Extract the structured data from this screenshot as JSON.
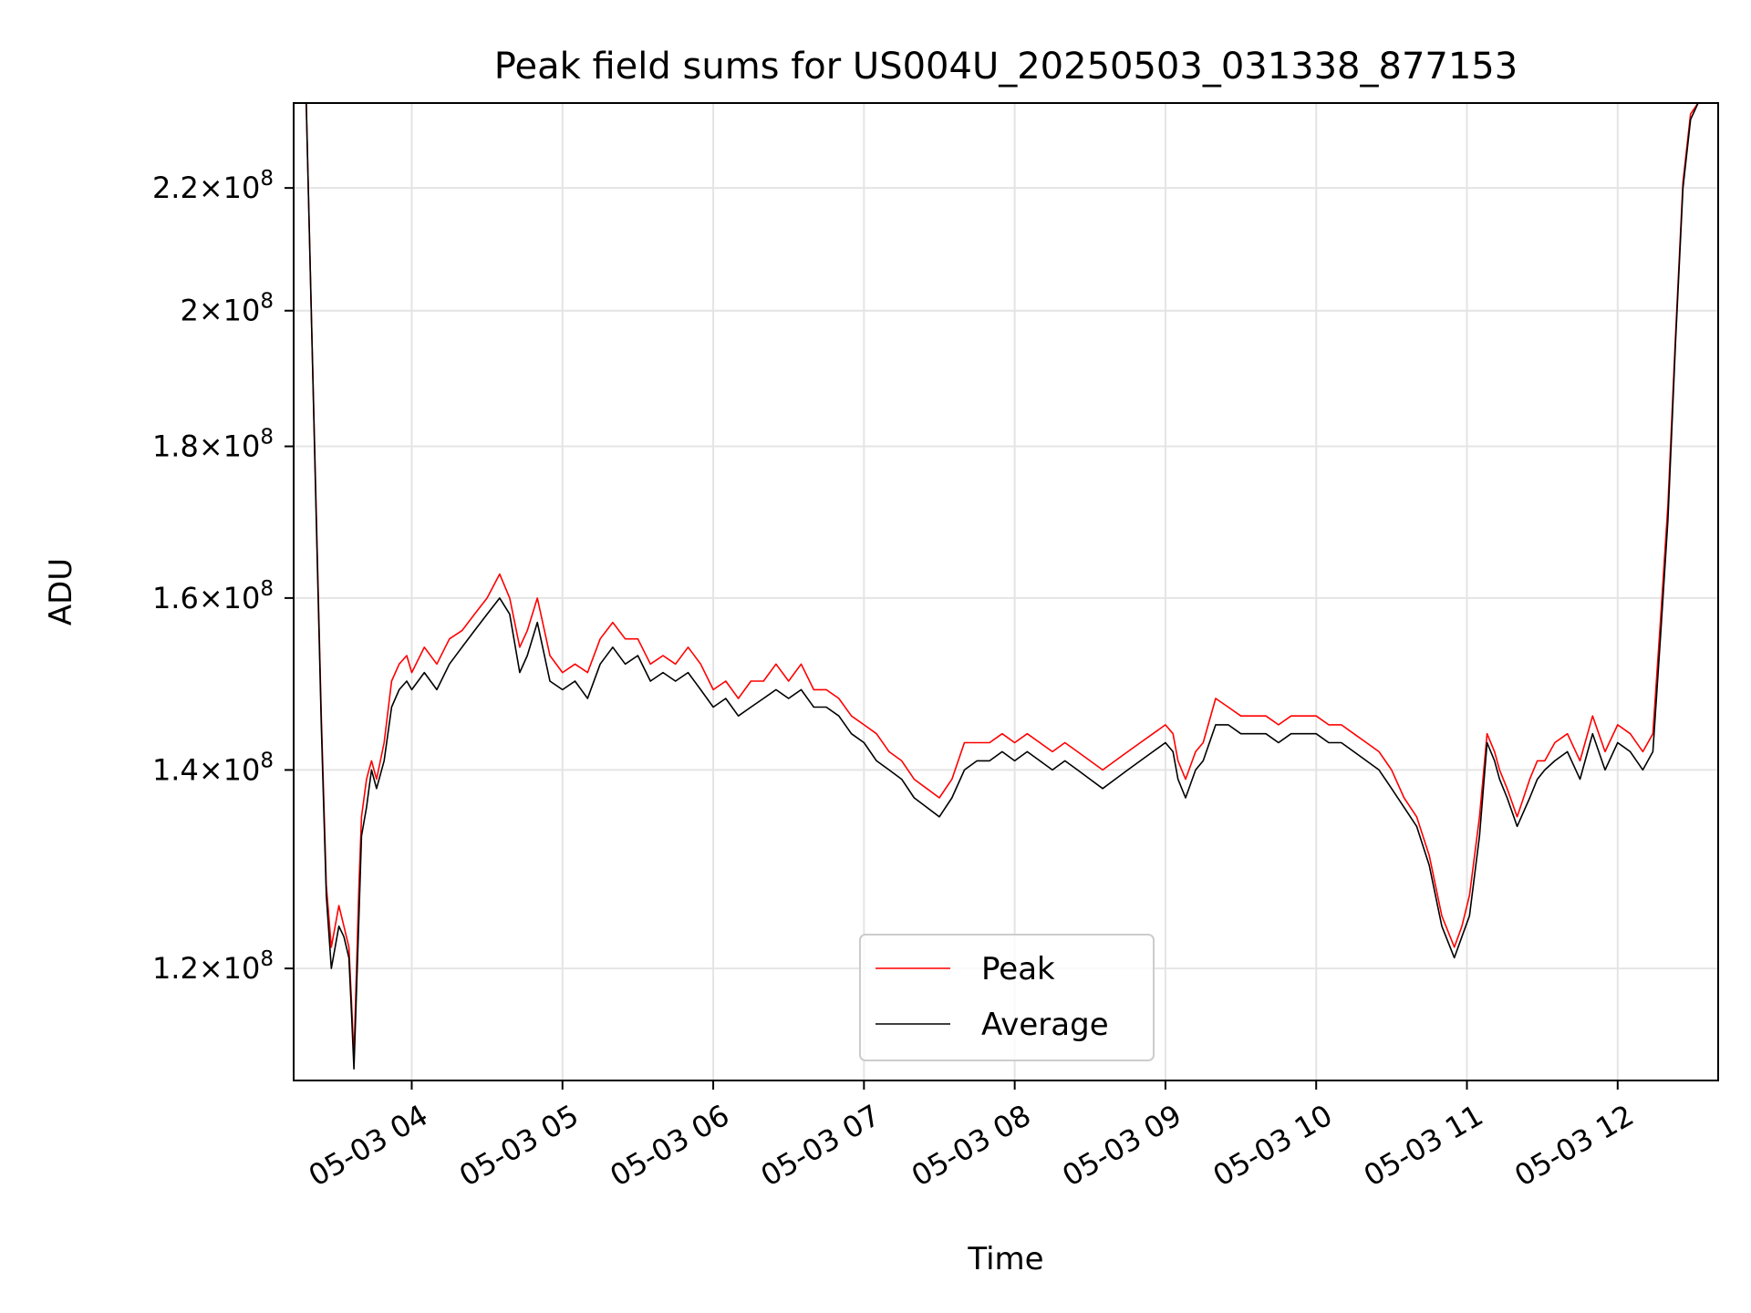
{
  "chart_data": {
    "type": "line",
    "title": "Peak field sums for US004U_20250503_031338_877153",
    "xlabel": "Time",
    "ylabel": "ADU",
    "y_scale": "log",
    "ylim": [
      110000000,
      235000000
    ],
    "xlim": [
      "2025-05-03 03:13",
      "2025-05-03 12:40"
    ],
    "grid": true,
    "legend_position": "lower-center",
    "x_tick_labels": [
      "05-03 04",
      "05-03 05",
      "05-03 06",
      "05-03 07",
      "05-03 08",
      "05-03 09",
      "05-03 10",
      "05-03 11",
      "05-03 12"
    ],
    "x_ticks": [
      "2025-05-03 04:00",
      "2025-05-03 05:00",
      "2025-05-03 06:00",
      "2025-05-03 07:00",
      "2025-05-03 08:00",
      "2025-05-03 09:00",
      "2025-05-03 10:00",
      "2025-05-03 11:00",
      "2025-05-03 12:00"
    ],
    "y_ticks": [
      {
        "value": 120000000,
        "mantissa": "1.2",
        "exponent": "8"
      },
      {
        "value": 140000000,
        "mantissa": "1.4",
        "exponent": "8"
      },
      {
        "value": 160000000,
        "mantissa": "1.6",
        "exponent": "8"
      },
      {
        "value": 180000000,
        "mantissa": "1.8",
        "exponent": "8"
      },
      {
        "value": 200000000,
        "mantissa": "2",
        "exponent": "8"
      },
      {
        "value": 220000000,
        "mantissa": "2.2",
        "exponent": "8"
      }
    ],
    "y_tick_times": "×10",
    "series": [
      {
        "name": "Peak",
        "color": "#ff0000",
        "line_width": 1
      },
      {
        "name": "Average",
        "color": "#000000",
        "line_width": 1
      }
    ],
    "x": [
      "2025-05-03 03:13",
      "2025-05-03 03:18",
      "2025-05-03 03:20",
      "2025-05-03 03:22",
      "2025-05-03 03:24",
      "2025-05-03 03:26",
      "2025-05-03 03:28",
      "2025-05-03 03:31",
      "2025-05-03 03:33",
      "2025-05-03 03:35",
      "2025-05-03 03:36",
      "2025-05-03 03:37",
      "2025-05-03 03:39",
      "2025-05-03 03:40",
      "2025-05-03 03:42",
      "2025-05-03 03:43",
      "2025-05-03 03:44",
      "2025-05-03 03:46",
      "2025-05-03 03:49",
      "2025-05-03 03:52",
      "2025-05-03 03:55",
      "2025-05-03 03:58",
      "2025-05-03 04:00",
      "2025-05-03 04:05",
      "2025-05-03 04:10",
      "2025-05-03 04:15",
      "2025-05-03 04:20",
      "2025-05-03 04:25",
      "2025-05-03 04:30",
      "2025-05-03 04:35",
      "2025-05-03 04:39",
      "2025-05-03 04:43",
      "2025-05-03 04:46",
      "2025-05-03 04:50",
      "2025-05-03 04:55",
      "2025-05-03 05:00",
      "2025-05-03 05:05",
      "2025-05-03 05:10",
      "2025-05-03 05:15",
      "2025-05-03 05:20",
      "2025-05-03 05:25",
      "2025-05-03 05:30",
      "2025-05-03 05:35",
      "2025-05-03 05:40",
      "2025-05-03 05:45",
      "2025-05-03 05:50",
      "2025-05-03 05:55",
      "2025-05-03 06:00",
      "2025-05-03 06:05",
      "2025-05-03 06:10",
      "2025-05-03 06:15",
      "2025-05-03 06:20",
      "2025-05-03 06:25",
      "2025-05-03 06:30",
      "2025-05-03 06:35",
      "2025-05-03 06:40",
      "2025-05-03 06:45",
      "2025-05-03 06:50",
      "2025-05-03 06:55",
      "2025-05-03 07:00",
      "2025-05-03 07:05",
      "2025-05-03 07:10",
      "2025-05-03 07:15",
      "2025-05-03 07:20",
      "2025-05-03 07:25",
      "2025-05-03 07:30",
      "2025-05-03 07:35",
      "2025-05-03 07:40",
      "2025-05-03 07:45",
      "2025-05-03 07:50",
      "2025-05-03 07:55",
      "2025-05-03 08:00",
      "2025-05-03 08:05",
      "2025-05-03 08:10",
      "2025-05-03 08:15",
      "2025-05-03 08:20",
      "2025-05-03 08:25",
      "2025-05-03 08:30",
      "2025-05-03 08:35",
      "2025-05-03 08:40",
      "2025-05-03 08:45",
      "2025-05-03 08:50",
      "2025-05-03 08:55",
      "2025-05-03 09:00",
      "2025-05-03 09:03",
      "2025-05-03 09:05",
      "2025-05-03 09:08",
      "2025-05-03 09:12",
      "2025-05-03 09:15",
      "2025-05-03 09:20",
      "2025-05-03 09:25",
      "2025-05-03 09:30",
      "2025-05-03 09:35",
      "2025-05-03 09:40",
      "2025-05-03 09:45",
      "2025-05-03 09:50",
      "2025-05-03 09:55",
      "2025-05-03 10:00",
      "2025-05-03 10:05",
      "2025-05-03 10:10",
      "2025-05-03 10:15",
      "2025-05-03 10:20",
      "2025-05-03 10:25",
      "2025-05-03 10:30",
      "2025-05-03 10:35",
      "2025-05-03 10:40",
      "2025-05-03 10:45",
      "2025-05-03 10:50",
      "2025-05-03 10:55",
      "2025-05-03 10:58",
      "2025-05-03 11:01",
      "2025-05-03 11:05",
      "2025-05-03 11:08",
      "2025-05-03 11:11",
      "2025-05-03 11:13",
      "2025-05-03 11:16",
      "2025-05-03 11:20",
      "2025-05-03 11:25",
      "2025-05-03 11:28",
      "2025-05-03 11:31",
      "2025-05-03 11:35",
      "2025-05-03 11:40",
      "2025-05-03 11:45",
      "2025-05-03 11:50",
      "2025-05-03 11:55",
      "2025-05-03 12:00",
      "2025-05-03 12:05",
      "2025-05-03 12:10",
      "2025-05-03 12:14",
      "2025-05-03 12:17",
      "2025-05-03 12:20",
      "2025-05-03 12:23",
      "2025-05-03 12:26",
      "2025-05-03 12:29",
      "2025-05-03 12:32",
      "2025-05-03 12:35",
      "2025-05-03 12:38"
    ],
    "average": [
      235000000,
      235000000,
      200000000,
      170000000,
      145000000,
      127000000,
      120000000,
      124000000,
      123000000,
      121000000,
      116000000,
      111000000,
      125000000,
      133000000,
      136000000,
      138000000,
      140000000,
      138000000,
      141000000,
      147000000,
      149000000,
      150000000,
      149000000,
      151000000,
      149000000,
      152000000,
      154000000,
      156000000,
      158000000,
      160000000,
      158000000,
      151000000,
      153000000,
      157000000,
      150000000,
      149000000,
      150000000,
      148000000,
      152000000,
      154000000,
      152000000,
      153000000,
      150000000,
      151000000,
      150000000,
      151000000,
      149000000,
      147000000,
      148000000,
      146000000,
      147000000,
      148000000,
      149000000,
      148000000,
      149000000,
      147000000,
      147000000,
      146000000,
      144000000,
      143000000,
      141000000,
      140000000,
      139000000,
      137000000,
      136000000,
      135000000,
      137000000,
      140000000,
      141000000,
      141000000,
      142000000,
      141000000,
      142000000,
      141000000,
      140000000,
      141000000,
      140000000,
      139000000,
      138000000,
      139000000,
      140000000,
      141000000,
      142000000,
      143000000,
      142000000,
      139000000,
      137000000,
      140000000,
      141000000,
      145000000,
      145000000,
      144000000,
      144000000,
      144000000,
      143000000,
      144000000,
      144000000,
      144000000,
      143000000,
      143000000,
      142000000,
      141000000,
      140000000,
      138000000,
      136000000,
      134000000,
      130000000,
      124000000,
      121000000,
      123000000,
      125000000,
      133000000,
      143000000,
      141000000,
      139000000,
      137000000,
      134000000,
      137000000,
      139000000,
      140000000,
      141000000,
      142000000,
      139000000,
      144000000,
      140000000,
      143000000,
      142000000,
      140000000,
      142000000,
      155000000,
      170000000,
      195000000,
      220000000,
      232000000,
      235000000
    ],
    "peak": [
      235000000,
      235000000,
      200000000,
      171000000,
      146000000,
      128000000,
      122000000,
      126000000,
      124000000,
      122000000,
      117000000,
      112000000,
      128000000,
      135000000,
      139000000,
      140000000,
      141000000,
      139000000,
      143000000,
      150000000,
      152000000,
      153000000,
      151000000,
      154000000,
      152000000,
      155000000,
      156000000,
      158000000,
      160000000,
      163000000,
      160000000,
      154000000,
      156000000,
      160000000,
      153000000,
      151000000,
      152000000,
      151000000,
      155000000,
      157000000,
      155000000,
      155000000,
      152000000,
      153000000,
      152000000,
      154000000,
      152000000,
      149000000,
      150000000,
      148000000,
      150000000,
      150000000,
      152000000,
      150000000,
      152000000,
      149000000,
      149000000,
      148000000,
      146000000,
      145000000,
      144000000,
      142000000,
      141000000,
      139000000,
      138000000,
      137000000,
      139000000,
      143000000,
      143000000,
      143000000,
      144000000,
      143000000,
      144000000,
      143000000,
      142000000,
      143000000,
      142000000,
      141000000,
      140000000,
      141000000,
      142000000,
      143000000,
      144000000,
      145000000,
      144000000,
      141000000,
      139000000,
      142000000,
      143000000,
      148000000,
      147000000,
      146000000,
      146000000,
      146000000,
      145000000,
      146000000,
      146000000,
      146000000,
      145000000,
      145000000,
      144000000,
      143000000,
      142000000,
      140000000,
      137000000,
      135000000,
      131000000,
      125000000,
      122000000,
      124000000,
      127000000,
      135000000,
      144000000,
      142000000,
      140000000,
      138000000,
      135000000,
      139000000,
      141000000,
      141000000,
      143000000,
      144000000,
      141000000,
      146000000,
      142000000,
      145000000,
      144000000,
      142000000,
      144000000,
      157000000,
      172000000,
      196000000,
      221000000,
      233000000,
      235000000
    ]
  }
}
